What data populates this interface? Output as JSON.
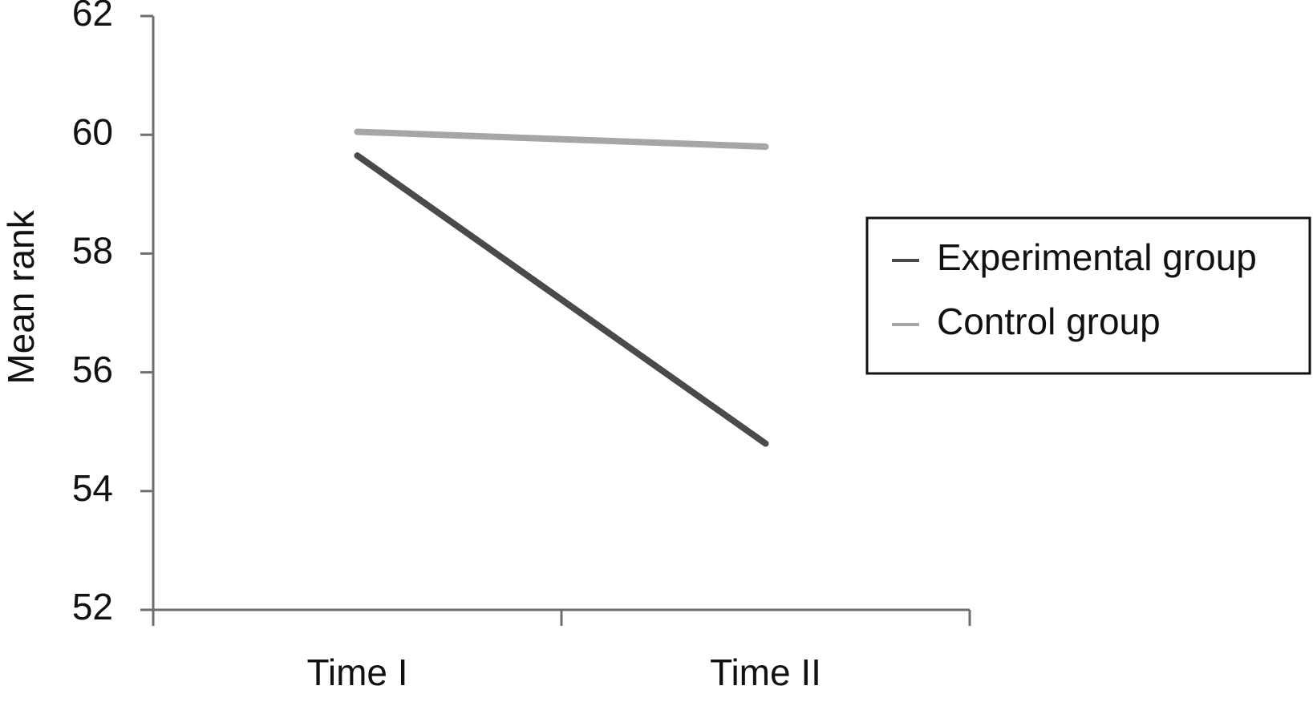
{
  "chart_data": {
    "type": "line",
    "categories": [
      "Time I",
      "Time II"
    ],
    "y_label": "Mean rank",
    "series": [
      {
        "name": "Experimental group",
        "color": "#4a4a4a",
        "values": [
          59.65,
          54.8
        ]
      },
      {
        "name": "Control group",
        "color": "#a6a6a6",
        "values": [
          60.05,
          59.8
        ]
      }
    ],
    "ylim": [
      52,
      62
    ],
    "yticks": [
      52,
      54,
      56,
      58,
      60,
      62
    ],
    "grid": false,
    "legend": "right"
  }
}
